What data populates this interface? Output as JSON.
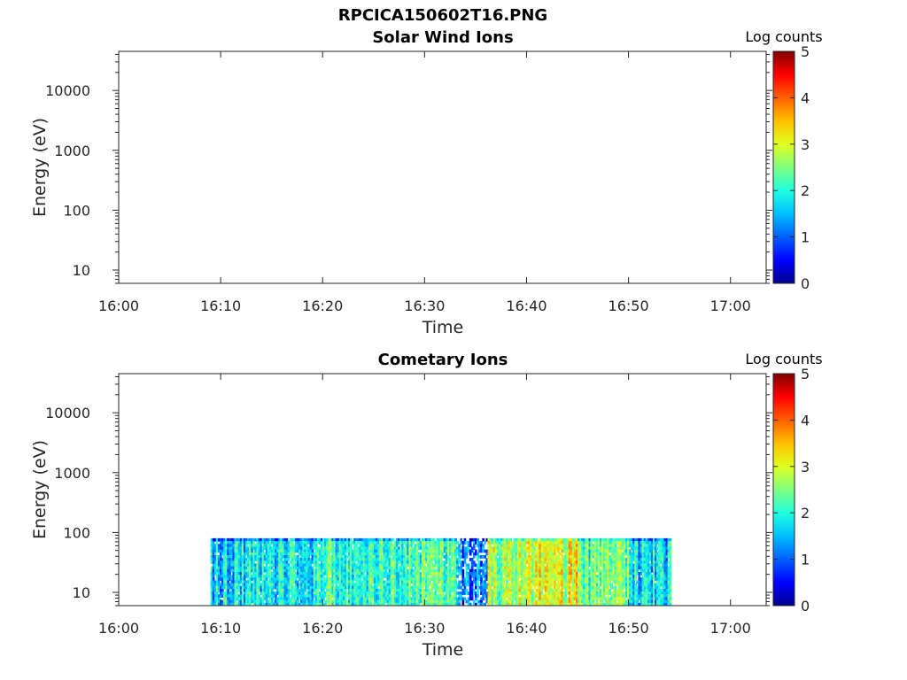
{
  "figure_title": "RPCICA150602T16.PNG",
  "colormap": [
    "#00008f",
    "#0000ff",
    "#0060ff",
    "#00bfff",
    "#1fffdf",
    "#80ff80",
    "#dfff20",
    "#ffbf00",
    "#ff6000",
    "#ff0000",
    "#800000"
  ],
  "chart_data": [
    {
      "type": "heatmap",
      "title": "Solar Wind Ions",
      "xlabel": "Time",
      "ylabel": "Energy (eV)",
      "x_ticks": [
        "16:00",
        "16:10",
        "16:20",
        "16:30",
        "16:40",
        "16:50",
        "17:00"
      ],
      "x_range_minutes": [
        0,
        63.5
      ],
      "y_scale": "log",
      "y_ticks": [
        "10",
        "100",
        "1000",
        "10000"
      ],
      "y_range": [
        6,
        45000
      ],
      "colorbar": {
        "label": "Log counts",
        "ticks": [
          "0",
          "1",
          "2",
          "3",
          "4",
          "5"
        ],
        "range": [
          0,
          5
        ]
      },
      "data_extent": null,
      "energy_top": null
    },
    {
      "type": "heatmap",
      "title": "Cometary Ions",
      "xlabel": "Time",
      "ylabel": "Energy (eV)",
      "x_ticks": [
        "16:00",
        "16:10",
        "16:20",
        "16:30",
        "16:40",
        "16:50",
        "17:00"
      ],
      "x_range_minutes": [
        0,
        63.5
      ],
      "y_scale": "log",
      "y_ticks": [
        "10",
        "100",
        "1000",
        "10000"
      ],
      "y_range": [
        6,
        45000
      ],
      "colorbar": {
        "label": "Log counts",
        "ticks": [
          "0",
          "1",
          "2",
          "3",
          "4",
          "5"
        ],
        "range": [
          0,
          5
        ]
      },
      "data_extent": {
        "start": "16:09",
        "end": "16:54"
      },
      "energy_top": 80,
      "log_counts_profile": [
        {
          "start": "16:09",
          "end": "16:12",
          "level": 1.6
        },
        {
          "start": "16:12",
          "end": "16:20",
          "level": 1.8
        },
        {
          "start": "16:20",
          "end": "16:27",
          "level": 2.1
        },
        {
          "start": "16:27",
          "end": "16:33",
          "level": 2.2
        },
        {
          "start": "16:33",
          "end": "16:36",
          "level": 1.1
        },
        {
          "start": "16:36",
          "end": "16:40",
          "level": 2.7
        },
        {
          "start": "16:40",
          "end": "16:45",
          "level": 3.0
        },
        {
          "start": "16:45",
          "end": "16:50",
          "level": 2.3
        },
        {
          "start": "16:50",
          "end": "16:54",
          "level": 1.7
        }
      ]
    }
  ]
}
